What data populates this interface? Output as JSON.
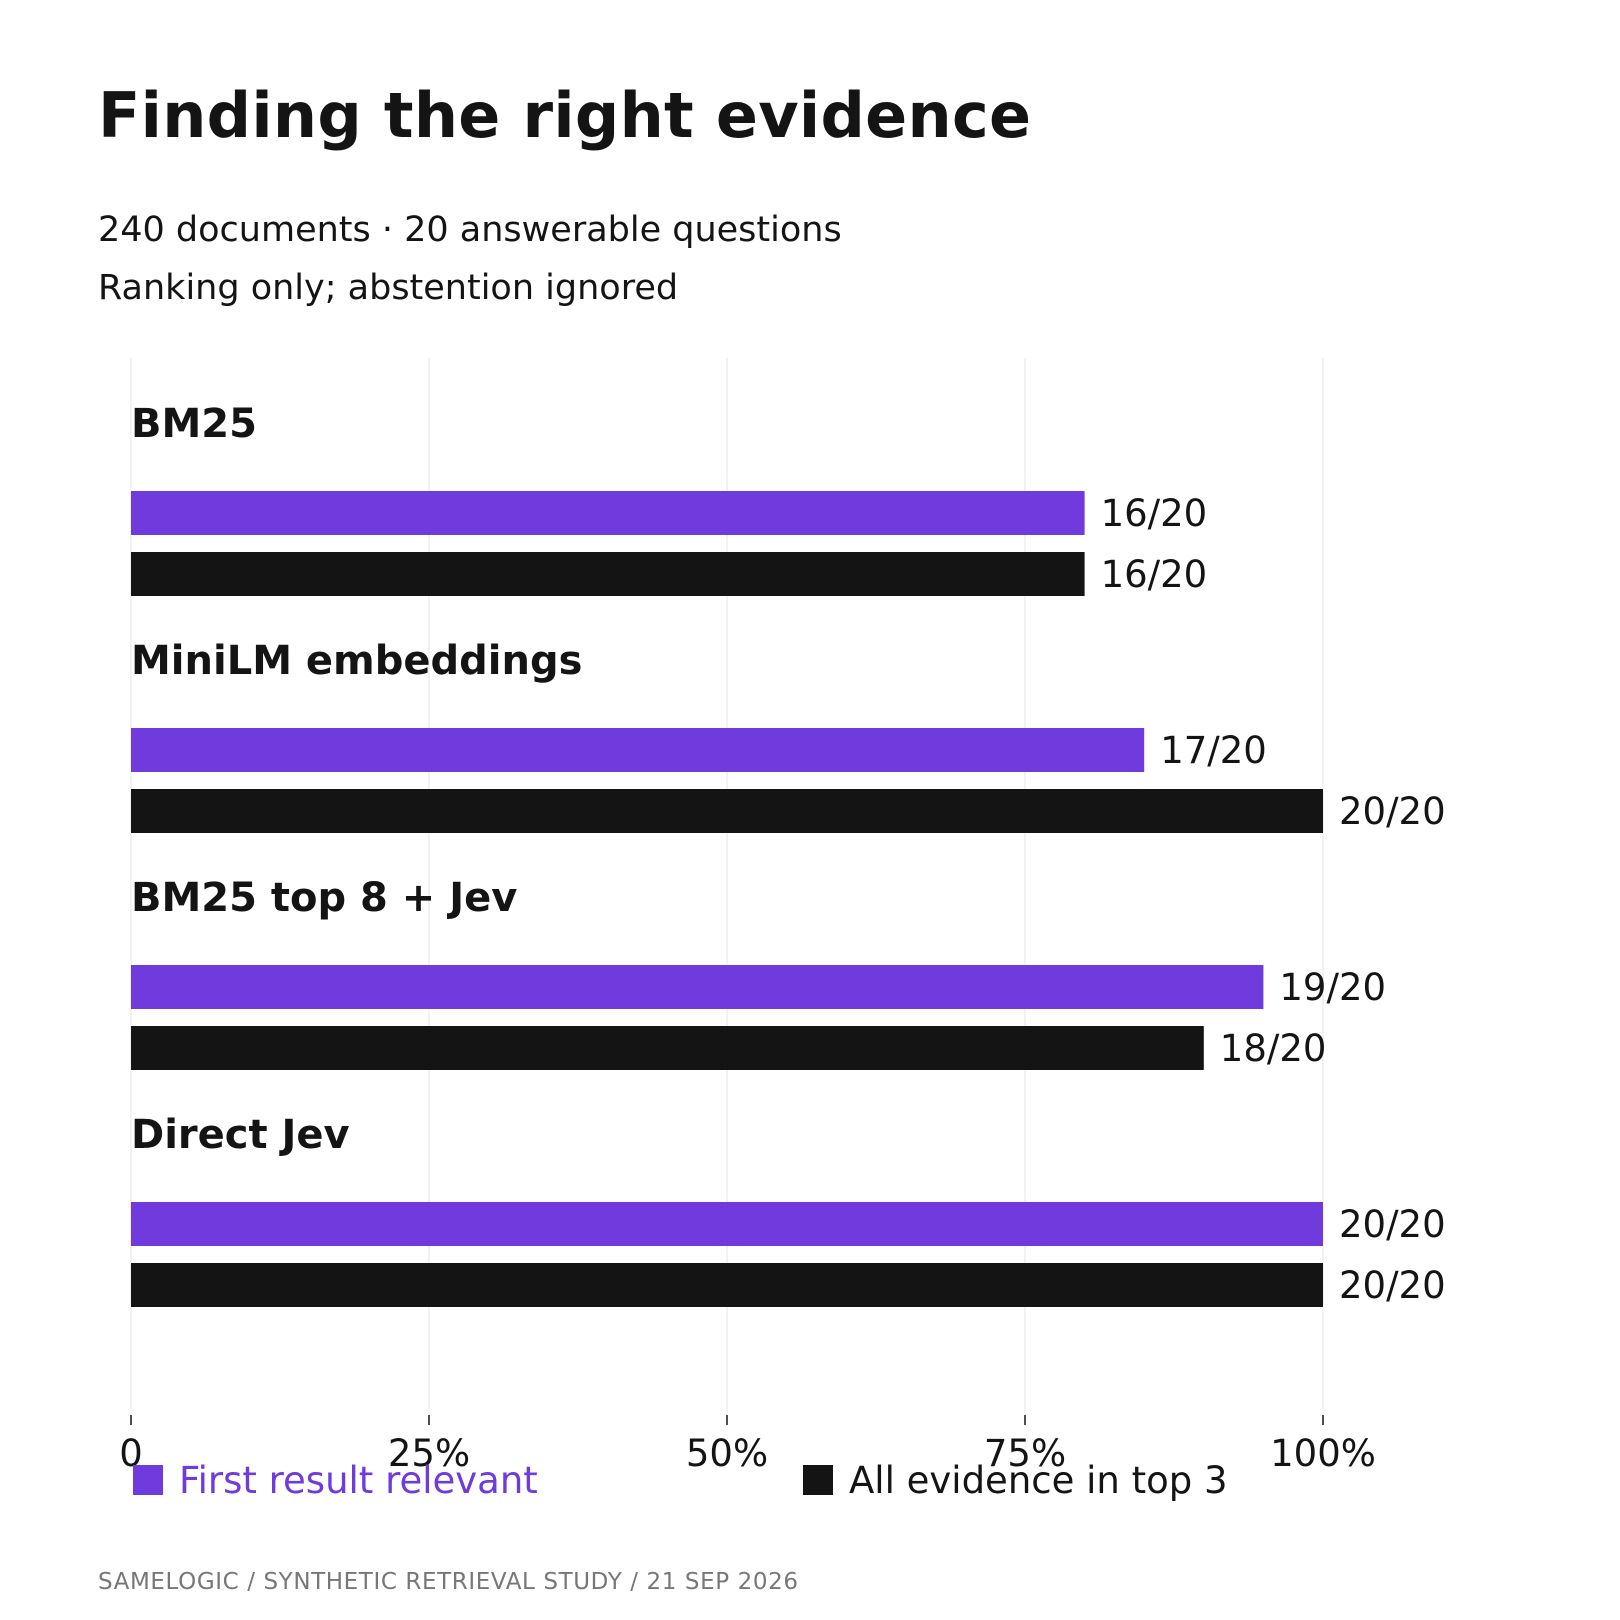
{
  "title": "Finding the right evidence",
  "subtitle_lines": [
    "240 documents · 20 answerable questions",
    "Ranking only; abstention ignored"
  ],
  "footer": "SAMELOGIC  /  SYNTHETIC RETRIEVAL STUDY  /  21 SEP 2026",
  "legend": [
    {
      "label": "First result relevant",
      "color": "#6f3bdc"
    },
    {
      "label": "All evidence in top 3",
      "color": "#141414"
    }
  ],
  "chart_data": {
    "type": "bar",
    "orientation": "horizontal",
    "categories": [
      "BM25",
      "MiniLM embeddings",
      "BM25 top 8 + Jev",
      "Direct Jev"
    ],
    "series": [
      {
        "name": "First result relevant",
        "color": "#6f3bdc",
        "values": [
          80,
          85,
          95,
          100
        ],
        "labels": [
          "16/20",
          "17/20",
          "19/20",
          "20/20"
        ]
      },
      {
        "name": "All evidence in top 3",
        "color": "#141414",
        "values": [
          80,
          100,
          90,
          100
        ],
        "labels": [
          "16/20",
          "20/20",
          "18/20",
          "20/20"
        ]
      }
    ],
    "x_ticks": [
      {
        "value": 0,
        "label": "0"
      },
      {
        "value": 25,
        "label": "25%"
      },
      {
        "value": 50,
        "label": "50%"
      },
      {
        "value": 75,
        "label": "75%"
      },
      {
        "value": 100,
        "label": "100%"
      }
    ],
    "xlim": [
      0,
      100
    ],
    "grid": true,
    "legend_position": "bottom-left"
  }
}
